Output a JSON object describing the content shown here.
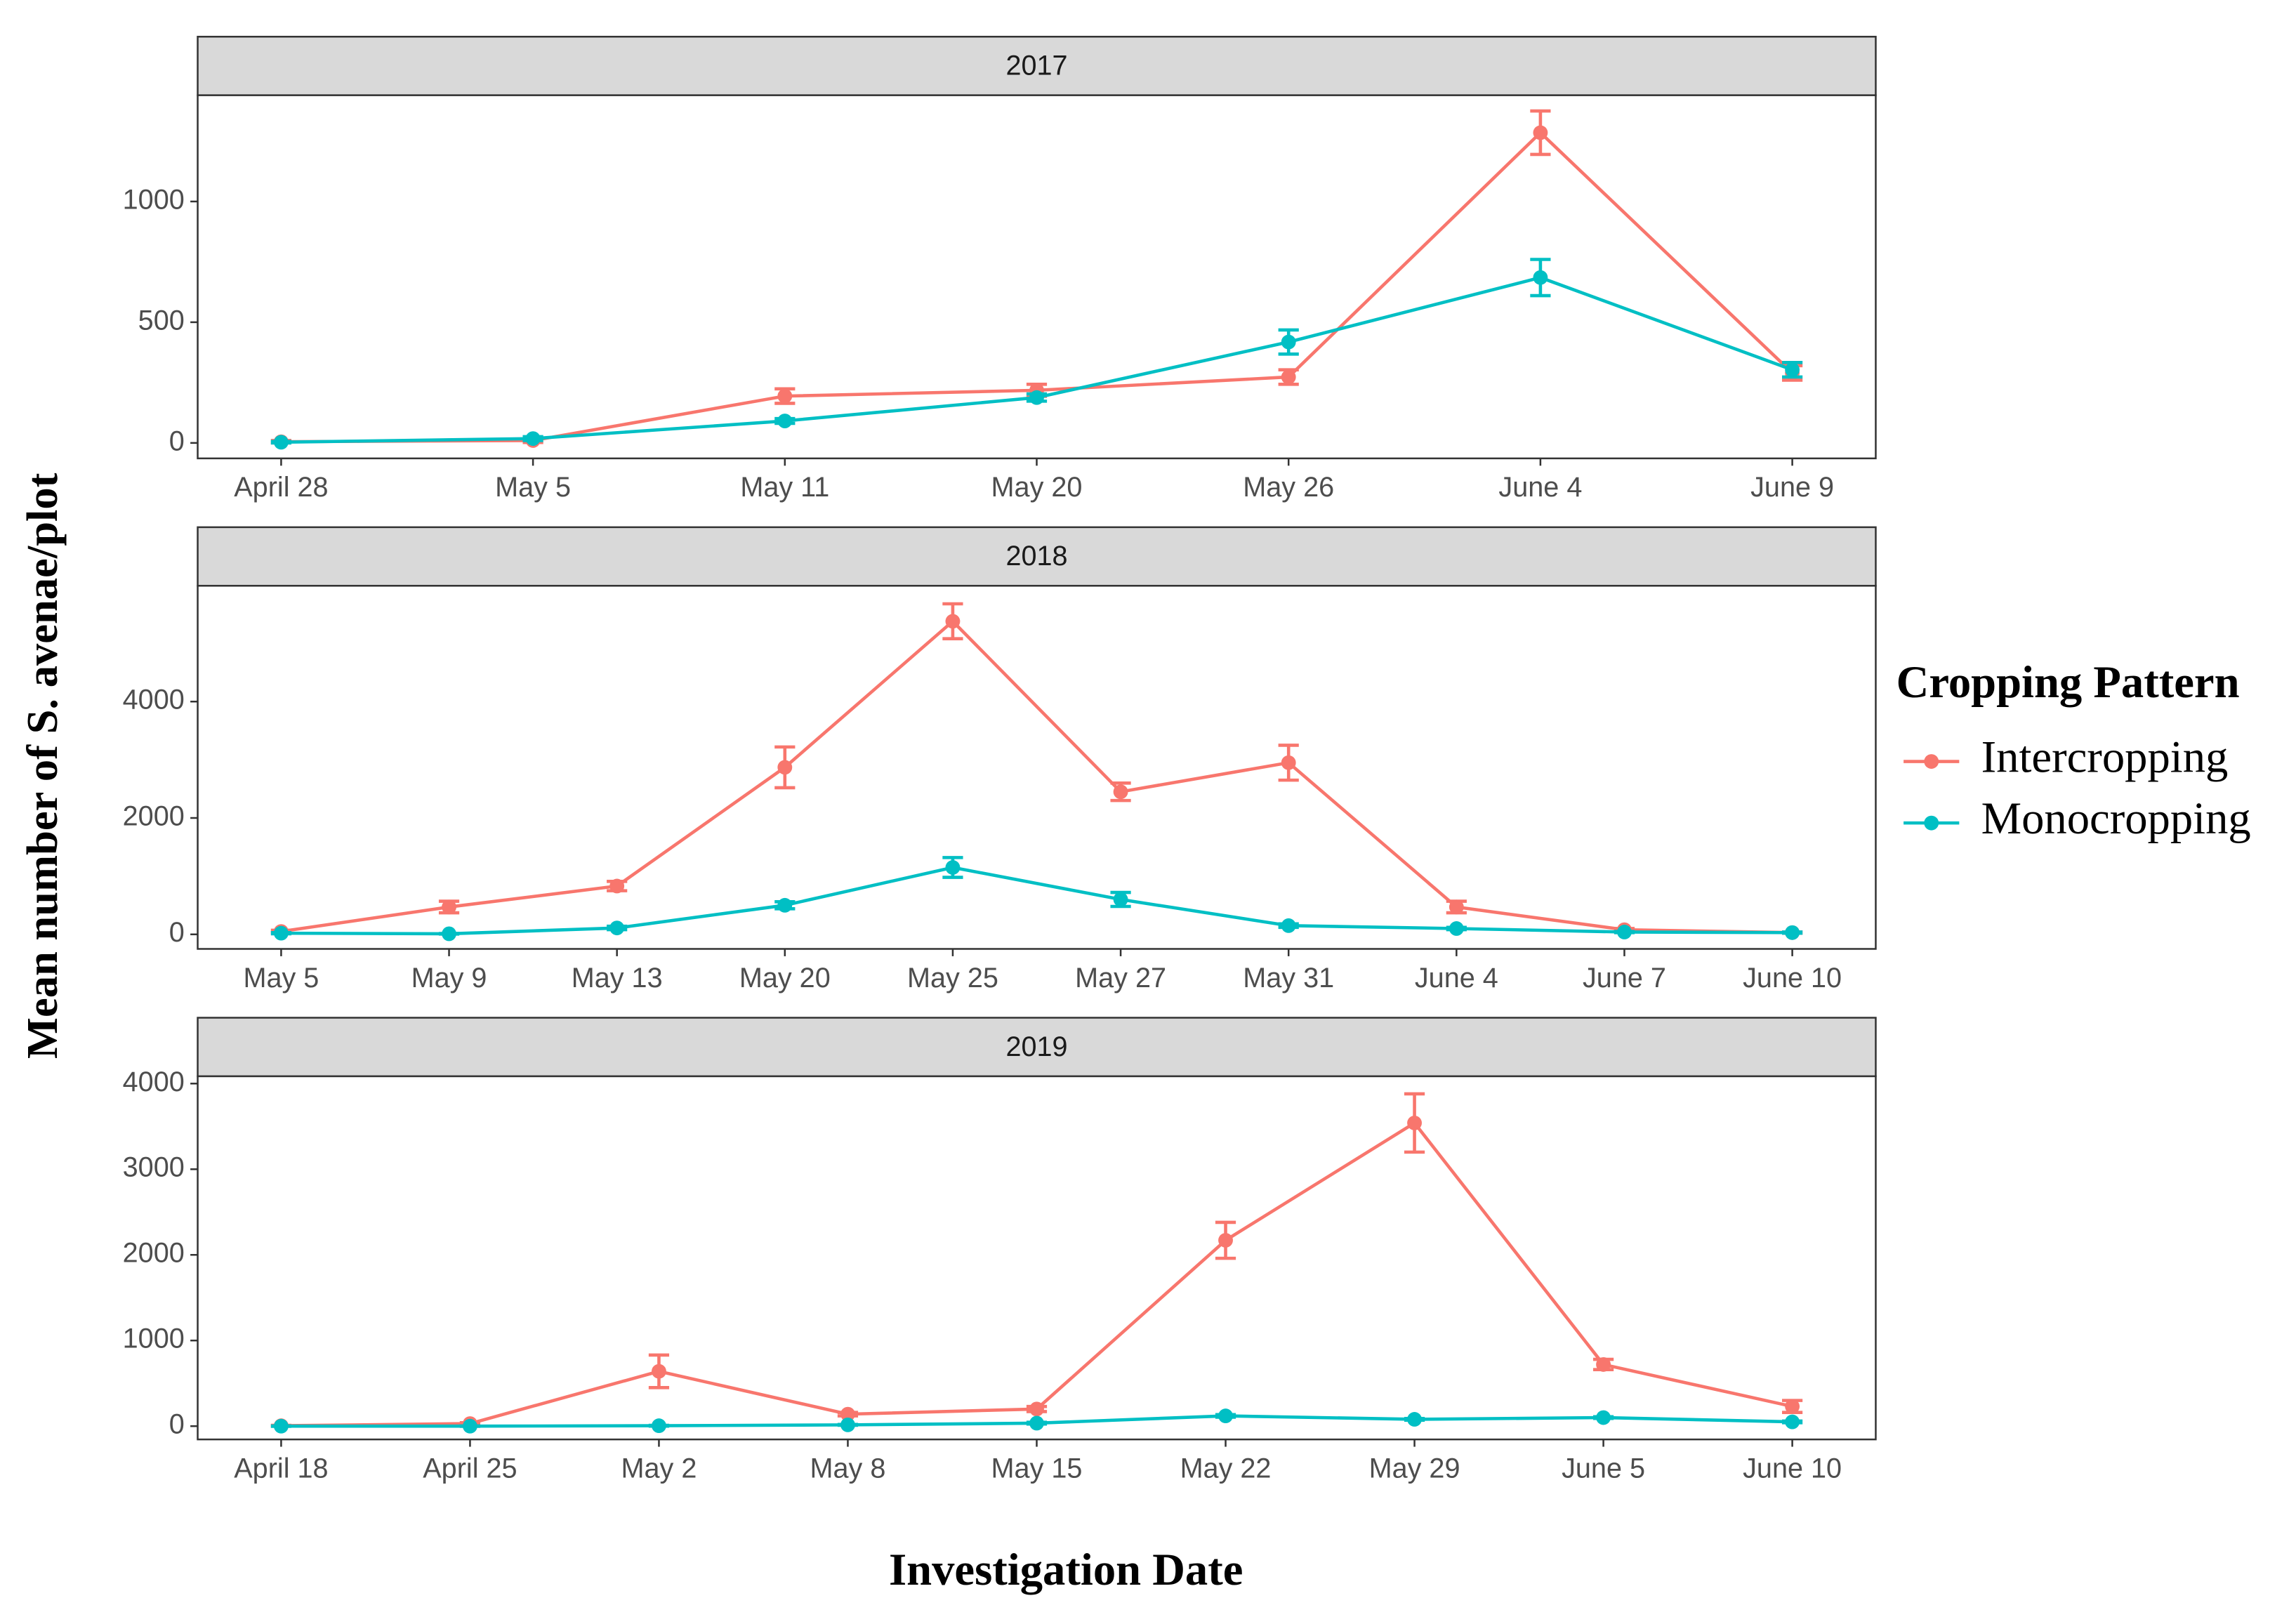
{
  "chart_data": [
    {
      "type": "line",
      "title": "2017",
      "categories": [
        "April 28",
        "May 5",
        "May 11",
        "May 20",
        "May 26",
        "June 4",
        "June 9"
      ],
      "series": [
        {
          "name": "Intercropping",
          "color": "#F8766D",
          "values": [
            5,
            10,
            194,
            218,
            273,
            1285,
            290
          ],
          "errors": [
            5,
            8,
            30,
            25,
            30,
            90,
            30
          ]
        },
        {
          "name": "Monocropping",
          "color": "#00BFC4",
          "values": [
            3,
            18,
            91,
            188,
            418,
            685,
            303
          ],
          "errors": [
            3,
            8,
            10,
            15,
            50,
            75,
            30
          ]
        }
      ],
      "ylim": [
        -64,
        1440
      ],
      "yticks": [
        0,
        500,
        1000
      ],
      "grid": false
    },
    {
      "type": "line",
      "title": "2018",
      "categories": [
        "May 5",
        "May 9",
        "May 13",
        "May 20",
        "May 25",
        "May 27",
        "May 31",
        "June 4",
        "June 7",
        "June 10"
      ],
      "series": [
        {
          "name": "Intercropping",
          "color": "#F8766D",
          "values": [
            50,
            470,
            830,
            2870,
            5380,
            2450,
            2950,
            470,
            80,
            30
          ],
          "errors": [
            20,
            100,
            80,
            350,
            300,
            150,
            300,
            100,
            20,
            10
          ]
        },
        {
          "name": "Monocropping",
          "color": "#00BFC4",
          "values": [
            20,
            10,
            110,
            500,
            1150,
            600,
            150,
            100,
            40,
            30
          ],
          "errors": [
            10,
            5,
            30,
            60,
            170,
            120,
            30,
            20,
            10,
            10
          ]
        }
      ],
      "ylim": [
        -250,
        5990
      ],
      "yticks": [
        0,
        2000,
        4000
      ],
      "grid": false
    },
    {
      "type": "line",
      "title": "2019",
      "categories": [
        "April 18",
        "April 25",
        "May 2",
        "May 8",
        "May 15",
        "May 22",
        "May 29",
        "June 5",
        "June 10"
      ],
      "series": [
        {
          "name": "Intercropping",
          "color": "#F8766D",
          "values": [
            5,
            30,
            640,
            140,
            200,
            2170,
            3540,
            720,
            230
          ],
          "errors": [
            5,
            10,
            190,
            20,
            30,
            210,
            340,
            60,
            70
          ]
        },
        {
          "name": "Monocropping",
          "color": "#00BFC4",
          "values": [
            0,
            0,
            5,
            15,
            35,
            120,
            80,
            100,
            50
          ],
          "errors": [
            2,
            2,
            5,
            5,
            10,
            15,
            10,
            10,
            10
          ]
        }
      ],
      "ylim": [
        -155,
        4085
      ],
      "yticks": [
        0,
        1000,
        2000,
        3000,
        4000
      ],
      "grid": false
    }
  ],
  "xlabel": "Investigation Date",
  "ylabel": "Mean number of S. avenae/plot",
  "legend_title": "Cropping Pattern"
}
